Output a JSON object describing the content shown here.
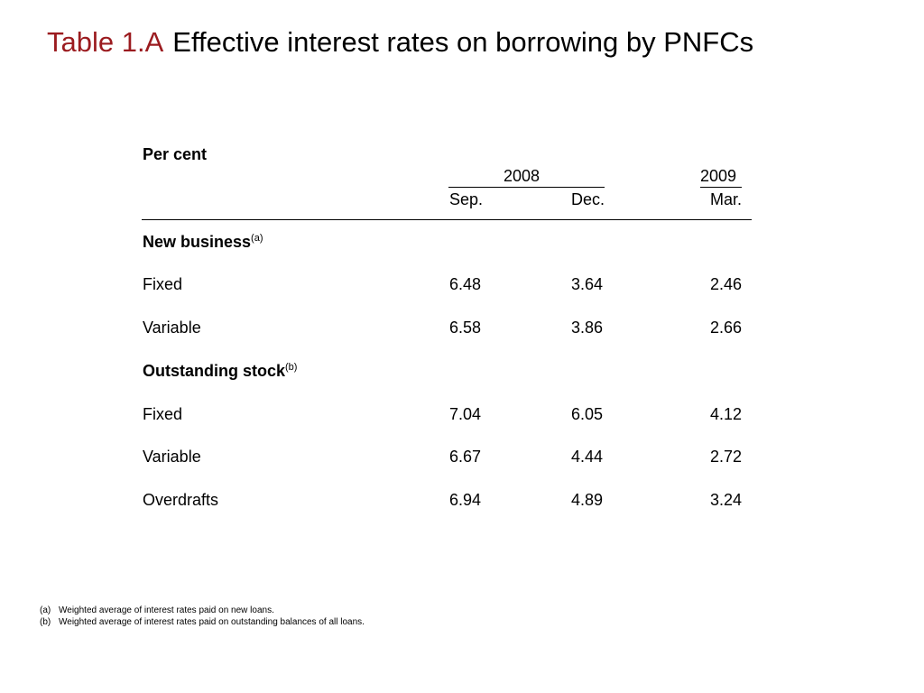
{
  "title": {
    "label": "Table 1.A",
    "text": "Effective interest rates on borrowing by PNFCs"
  },
  "table": {
    "units": "Per cent",
    "year_groups": [
      {
        "label": "2008"
      },
      {
        "label": "2009"
      }
    ],
    "columns": [
      "Sep.",
      "Dec.",
      "Mar."
    ],
    "sections": [
      {
        "heading": "New business",
        "note": "(a)",
        "rows": [
          {
            "label": "Fixed",
            "values": [
              "6.48",
              "3.64",
              "2.46"
            ]
          },
          {
            "label": "Variable",
            "values": [
              "6.58",
              "3.86",
              "2.66"
            ]
          }
        ]
      },
      {
        "heading": "Outstanding stock",
        "note": "(b)",
        "rows": [
          {
            "label": "Fixed",
            "values": [
              "7.04",
              "6.05",
              "4.12"
            ]
          },
          {
            "label": "Variable",
            "values": [
              "6.67",
              "4.44",
              "2.72"
            ]
          },
          {
            "label": "Overdrafts",
            "values": [
              "6.94",
              "4.89",
              "3.24"
            ]
          }
        ]
      }
    ]
  },
  "footnotes": [
    {
      "mark": "(a)",
      "text": "Weighted average of interest rates paid on new loans."
    },
    {
      "mark": "(b)",
      "text": "Weighted average of interest rates paid on outstanding balances of all loans."
    }
  ]
}
